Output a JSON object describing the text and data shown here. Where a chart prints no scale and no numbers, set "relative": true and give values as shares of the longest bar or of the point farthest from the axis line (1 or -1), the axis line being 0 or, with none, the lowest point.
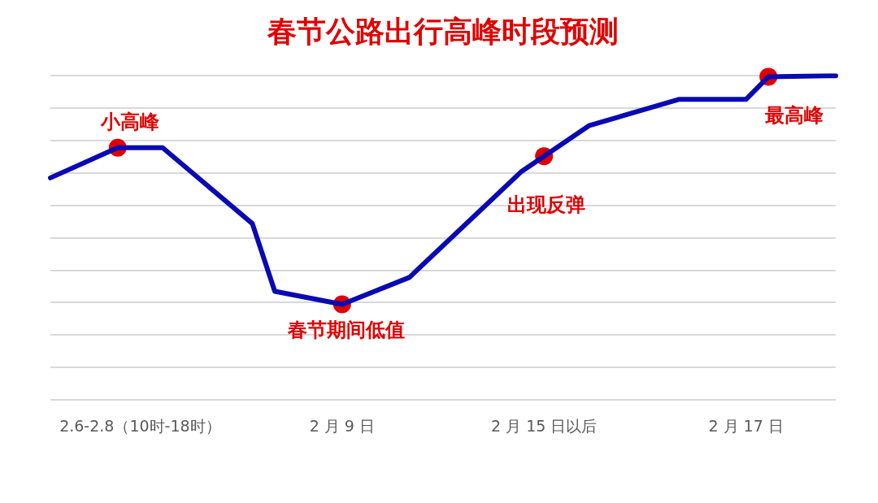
{
  "chart_data": {
    "type": "line",
    "title": "春节公路出行高峰时段预测",
    "relative": true,
    "grid": "y",
    "legend": false,
    "categories": [
      null,
      null,
      null,
      null,
      "2.6-2.8（10时-18时）",
      null,
      null,
      null,
      null,
      null,
      null,
      null,
      null,
      "2 月 9 日",
      null,
      null,
      null,
      null,
      null,
      null,
      null,
      null,
      "2 月 15 日以后",
      null,
      null,
      null,
      null,
      null,
      null,
      null,
      null,
      "2 月 17 日",
      null,
      null,
      null,
      null
    ],
    "series": [
      {
        "type": "line",
        "marker": "none",
        "color": "#0a0ab4",
        "values": [
          0.685,
          null,
          null,
          0.778,
          null,
          0.778,
          null,
          null,
          null,
          0.544,
          0.335,
          null,
          null,
          0.295,
          null,
          null,
          0.378,
          null,
          null,
          null,
          null,
          0.705,
          null,
          null,
          0.846,
          null,
          null,
          null,
          0.927,
          null,
          null,
          0.927,
          0.997,
          null,
          null,
          1
        ]
      },
      {
        "type": "scatter",
        "marker": "circle",
        "color": "#e00000",
        "values": [
          null,
          null,
          null,
          0.778,
          null,
          null,
          null,
          null,
          null,
          null,
          null,
          null,
          null,
          0.295,
          null,
          null,
          null,
          null,
          null,
          null,
          null,
          null,
          0.752,
          null,
          null,
          null,
          null,
          null,
          null,
          null,
          null,
          null,
          0.997,
          null,
          null,
          null
        ]
      }
    ],
    "annotations": [
      "小高峰",
      "春节期间低值",
      "出现反弹",
      "最高峰"
    ]
  }
}
